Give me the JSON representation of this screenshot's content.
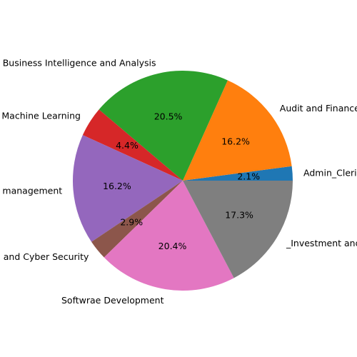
{
  "chart_data": {
    "type": "pie",
    "title": "",
    "slices": [
      {
        "label": "Admin_Clerical",
        "value": 2.1,
        "pct_label": "2.1%",
        "color": "#1f77b4"
      },
      {
        "label": "Audit and Finance",
        "value": 16.2,
        "pct_label": "16.2%",
        "color": "#ff7f0e"
      },
      {
        "label": "Business Intelligence and Analysis",
        "value": 20.5,
        "pct_label": "20.5%",
        "color": "#2ca02c"
      },
      {
        "label": "Machine Learning",
        "value": 4.4,
        "pct_label": "4.4%",
        "color": "#d62728"
      },
      {
        "label": "management",
        "value": 16.2,
        "pct_label": "16.2%",
        "color": "#9467bd"
      },
      {
        "label": "and Cyber Security",
        "value": 2.9,
        "pct_label": "2.9%",
        "color": "#8c564b"
      },
      {
        "label": "Softwrae Development",
        "value": 20.4,
        "pct_label": "20.4%",
        "color": "#e377c2"
      },
      {
        "label": "_Investment and",
        "value": 17.3,
        "pct_label": "17.3%",
        "color": "#7f7f7f"
      }
    ],
    "start_angle_deg": 0,
    "direction": "counterclockwise"
  }
}
